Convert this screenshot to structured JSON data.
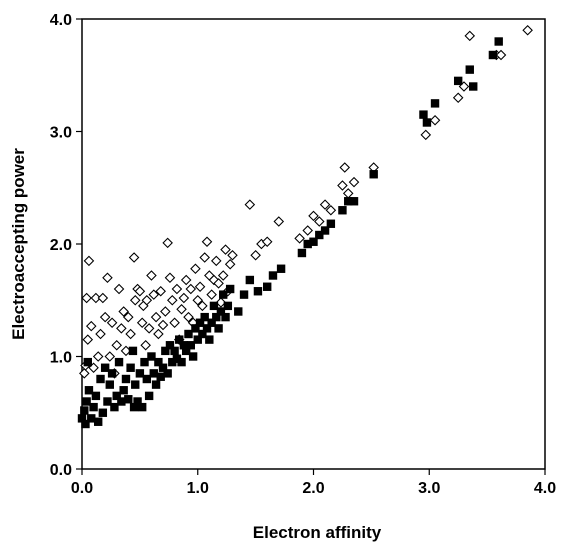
{
  "chart_data": {
    "type": "scatter",
    "xlabel": "Electron affinity",
    "ylabel": "Electroaccepting power",
    "xlim": [
      0.0,
      4.0
    ],
    "ylim": [
      0.0,
      4.0
    ],
    "x_ticks": [
      "0.0",
      "1.0",
      "2.0",
      "3.0",
      "4.0"
    ],
    "y_ticks": [
      "0.0",
      "1.0",
      "2.0",
      "3.0",
      "4.0"
    ],
    "grid": false,
    "legend": "none",
    "series": [
      {
        "marker": "open-diamond",
        "color": "#000000",
        "points": [
          [
            0.02,
            0.85
          ],
          [
            0.03,
            0.92
          ],
          [
            0.04,
            1.52
          ],
          [
            0.05,
            1.15
          ],
          [
            0.06,
            1.85
          ],
          [
            0.08,
            1.27
          ],
          [
            0.1,
            0.9
          ],
          [
            0.12,
            1.52
          ],
          [
            0.14,
            1.0
          ],
          [
            0.16,
            1.2
          ],
          [
            0.18,
            1.52
          ],
          [
            0.2,
            1.35
          ],
          [
            0.22,
            1.7
          ],
          [
            0.24,
            1.0
          ],
          [
            0.26,
            1.3
          ],
          [
            0.28,
            0.85
          ],
          [
            0.3,
            1.1
          ],
          [
            0.32,
            1.6
          ],
          [
            0.34,
            1.25
          ],
          [
            0.36,
            1.4
          ],
          [
            0.38,
            1.05
          ],
          [
            0.4,
            1.35
          ],
          [
            0.42,
            1.2
          ],
          [
            0.45,
            1.88
          ],
          [
            0.46,
            1.5
          ],
          [
            0.48,
            1.6
          ],
          [
            0.5,
            1.58
          ],
          [
            0.52,
            1.3
          ],
          [
            0.53,
            1.45
          ],
          [
            0.55,
            1.1
          ],
          [
            0.56,
            1.5
          ],
          [
            0.58,
            1.25
          ],
          [
            0.6,
            1.72
          ],
          [
            0.62,
            1.55
          ],
          [
            0.64,
            1.35
          ],
          [
            0.66,
            1.2
          ],
          [
            0.68,
            1.58
          ],
          [
            0.7,
            1.28
          ],
          [
            0.72,
            1.4
          ],
          [
            0.74,
            2.01
          ],
          [
            0.76,
            1.7
          ],
          [
            0.78,
            1.5
          ],
          [
            0.8,
            1.3
          ],
          [
            0.82,
            1.6
          ],
          [
            0.84,
            1.15
          ],
          [
            0.86,
            1.42
          ],
          [
            0.88,
            1.52
          ],
          [
            0.9,
            1.68
          ],
          [
            0.92,
            1.35
          ],
          [
            0.94,
            1.6
          ],
          [
            0.96,
            1.3
          ],
          [
            0.98,
            1.78
          ],
          [
            1.0,
            1.5
          ],
          [
            1.02,
            1.62
          ],
          [
            1.04,
            1.45
          ],
          [
            1.06,
            1.88
          ],
          [
            1.08,
            2.02
          ],
          [
            1.1,
            1.72
          ],
          [
            1.12,
            1.55
          ],
          [
            1.14,
            1.68
          ],
          [
            1.16,
            1.85
          ],
          [
            1.18,
            1.65
          ],
          [
            1.2,
            1.48
          ],
          [
            1.22,
            1.72
          ],
          [
            1.24,
            1.95
          ],
          [
            1.26,
            1.58
          ],
          [
            1.28,
            1.82
          ],
          [
            1.3,
            1.9
          ],
          [
            1.45,
            2.35
          ],
          [
            1.5,
            1.9
          ],
          [
            1.55,
            2.0
          ],
          [
            1.6,
            2.02
          ],
          [
            1.7,
            2.2
          ],
          [
            1.88,
            2.05
          ],
          [
            1.95,
            2.12
          ],
          [
            2.0,
            2.25
          ],
          [
            2.05,
            2.2
          ],
          [
            2.1,
            2.35
          ],
          [
            2.15,
            2.3
          ],
          [
            2.25,
            2.52
          ],
          [
            2.27,
            2.68
          ],
          [
            2.3,
            2.45
          ],
          [
            2.35,
            2.55
          ],
          [
            2.52,
            2.68
          ],
          [
            2.97,
            2.97
          ],
          [
            3.05,
            3.1
          ],
          [
            3.25,
            3.3
          ],
          [
            3.3,
            3.4
          ],
          [
            3.35,
            3.85
          ],
          [
            3.58,
            3.68
          ],
          [
            3.62,
            3.68
          ],
          [
            3.85,
            3.9
          ]
        ]
      },
      {
        "marker": "filled-square",
        "color": "#000000",
        "points": [
          [
            0.0,
            0.45
          ],
          [
            0.02,
            0.52
          ],
          [
            0.03,
            0.4
          ],
          [
            0.04,
            0.6
          ],
          [
            0.05,
            0.95
          ],
          [
            0.06,
            0.7
          ],
          [
            0.08,
            0.45
          ],
          [
            0.1,
            0.55
          ],
          [
            0.12,
            0.65
          ],
          [
            0.14,
            0.42
          ],
          [
            0.16,
            0.8
          ],
          [
            0.18,
            0.5
          ],
          [
            0.2,
            0.9
          ],
          [
            0.22,
            0.6
          ],
          [
            0.24,
            0.75
          ],
          [
            0.26,
            0.85
          ],
          [
            0.28,
            0.55
          ],
          [
            0.3,
            0.65
          ],
          [
            0.32,
            0.95
          ],
          [
            0.34,
            0.6
          ],
          [
            0.36,
            0.7
          ],
          [
            0.38,
            0.8
          ],
          [
            0.4,
            0.62
          ],
          [
            0.42,
            0.9
          ],
          [
            0.44,
            1.05
          ],
          [
            0.45,
            0.55
          ],
          [
            0.46,
            0.75
          ],
          [
            0.48,
            0.6
          ],
          [
            0.5,
            0.85
          ],
          [
            0.52,
            0.55
          ],
          [
            0.54,
            0.95
          ],
          [
            0.56,
            0.8
          ],
          [
            0.58,
            0.65
          ],
          [
            0.6,
            1.0
          ],
          [
            0.62,
            0.85
          ],
          [
            0.64,
            0.75
          ],
          [
            0.66,
            0.95
          ],
          [
            0.68,
            0.82
          ],
          [
            0.7,
            0.9
          ],
          [
            0.72,
            1.05
          ],
          [
            0.74,
            0.85
          ],
          [
            0.76,
            1.1
          ],
          [
            0.78,
            0.95
          ],
          [
            0.8,
            1.05
          ],
          [
            0.82,
            0.98
          ],
          [
            0.84,
            1.15
          ],
          [
            0.86,
            0.95
          ],
          [
            0.88,
            1.1
          ],
          [
            0.9,
            1.05
          ],
          [
            0.92,
            1.2
          ],
          [
            0.94,
            1.1
          ],
          [
            0.96,
            1.0
          ],
          [
            0.98,
            1.25
          ],
          [
            1.0,
            1.15
          ],
          [
            1.02,
            1.3
          ],
          [
            1.04,
            1.2
          ],
          [
            1.06,
            1.35
          ],
          [
            1.08,
            1.25
          ],
          [
            1.1,
            1.15
          ],
          [
            1.12,
            1.3
          ],
          [
            1.14,
            1.45
          ],
          [
            1.16,
            1.35
          ],
          [
            1.18,
            1.25
          ],
          [
            1.2,
            1.4
          ],
          [
            1.22,
            1.55
          ],
          [
            1.24,
            1.35
          ],
          [
            1.26,
            1.45
          ],
          [
            1.28,
            1.6
          ],
          [
            1.35,
            1.4
          ],
          [
            1.4,
            1.55
          ],
          [
            1.45,
            1.68
          ],
          [
            1.52,
            1.58
          ],
          [
            1.6,
            1.62
          ],
          [
            1.65,
            1.72
          ],
          [
            1.72,
            1.78
          ],
          [
            1.9,
            1.92
          ],
          [
            1.95,
            2.0
          ],
          [
            2.0,
            2.02
          ],
          [
            2.05,
            2.08
          ],
          [
            2.1,
            2.12
          ],
          [
            2.15,
            2.18
          ],
          [
            2.25,
            2.3
          ],
          [
            2.3,
            2.38
          ],
          [
            2.35,
            2.38
          ],
          [
            2.52,
            2.62
          ],
          [
            2.95,
            3.15
          ],
          [
            2.98,
            3.08
          ],
          [
            3.05,
            3.25
          ],
          [
            3.25,
            3.45
          ],
          [
            3.35,
            3.55
          ],
          [
            3.38,
            3.4
          ],
          [
            3.55,
            3.68
          ],
          [
            3.6,
            3.8
          ]
        ]
      }
    ]
  }
}
